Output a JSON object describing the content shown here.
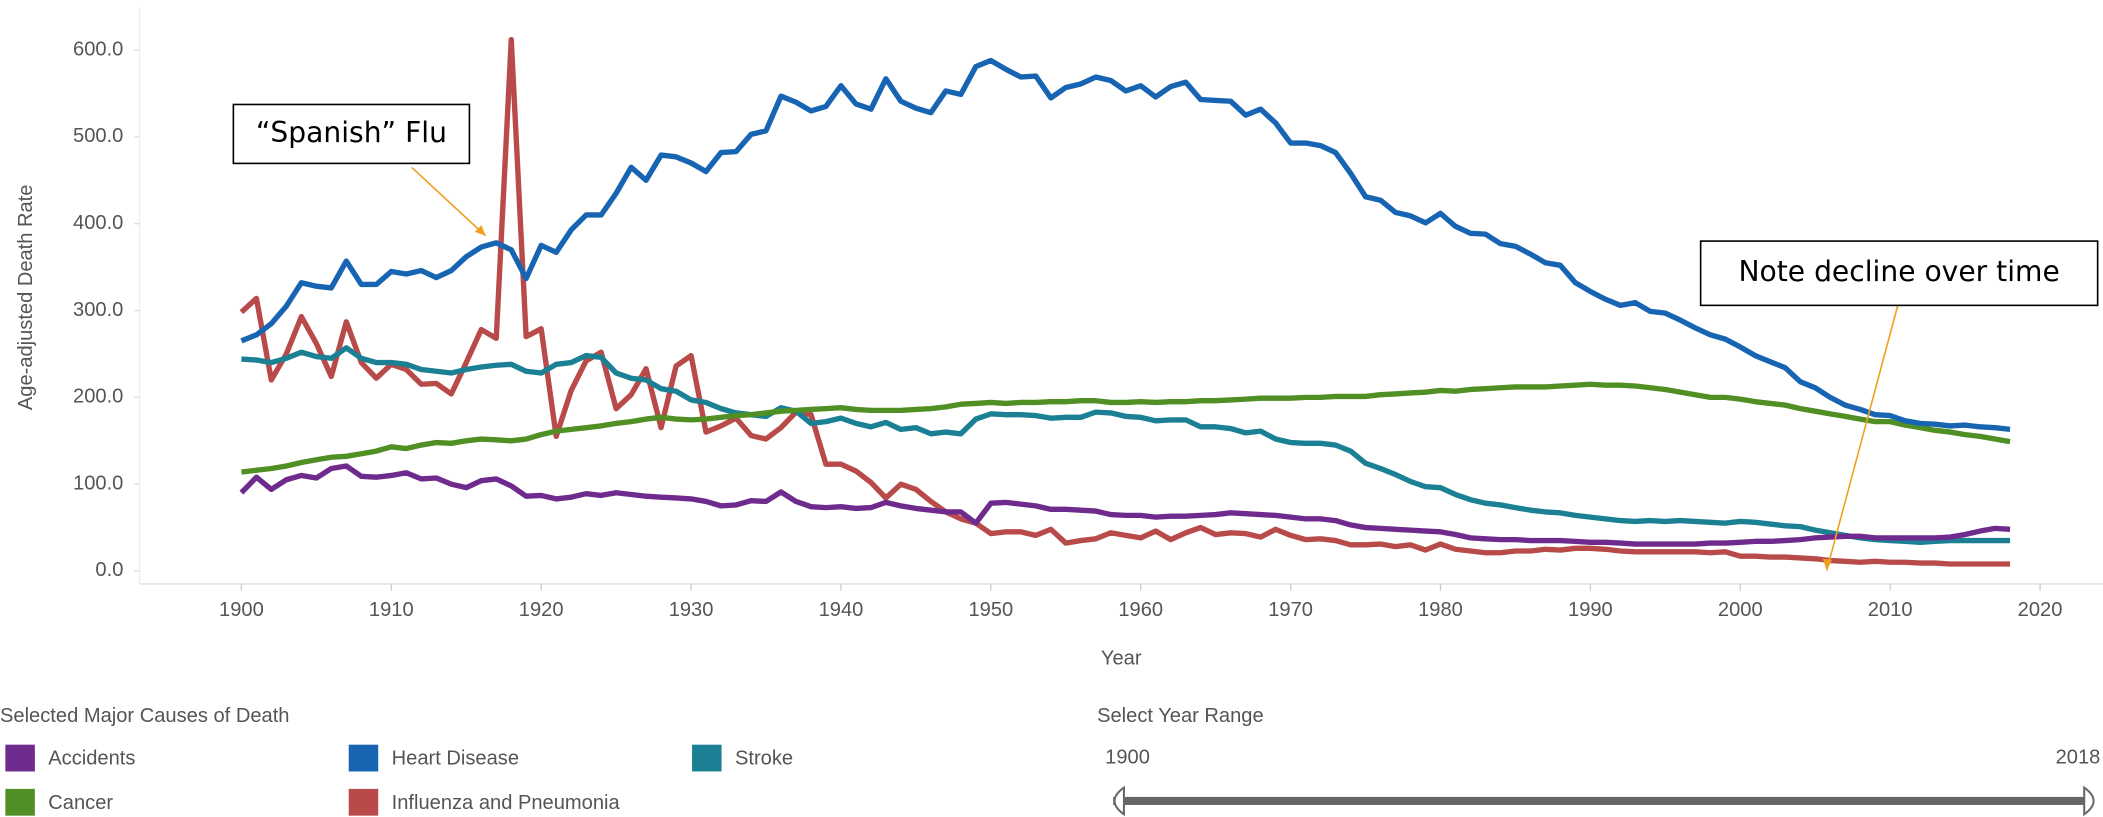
{
  "chart_data": {
    "type": "line",
    "x_label": "Year",
    "y_label": "Age-adjusted Death Rate",
    "xlim": [
      1893.2,
      2024.2
    ],
    "xticks": [
      1900,
      1910,
      1920,
      1930,
      1940,
      1950,
      1960,
      1970,
      1980,
      1990,
      2000,
      2010,
      2020
    ],
    "ylim": [
      -15,
      650
    ],
    "yticks": [
      {
        "value": 0,
        "label": "0.0"
      },
      {
        "value": 100,
        "label": "100.0"
      },
      {
        "value": 200,
        "label": "200.0"
      },
      {
        "value": 300,
        "label": "300.0"
      },
      {
        "value": 400,
        "label": "400.0"
      },
      {
        "value": 500,
        "label": "500.0"
      },
      {
        "value": 600,
        "label": "600.0"
      }
    ],
    "grid": false,
    "legend_title": "Selected Major Causes of Death",
    "x": [
      1900,
      1901,
      1902,
      1903,
      1904,
      1905,
      1906,
      1907,
      1908,
      1909,
      1910,
      1911,
      1912,
      1913,
      1914,
      1915,
      1916,
      1917,
      1918,
      1919,
      1920,
      1921,
      1922,
      1923,
      1924,
      1925,
      1926,
      1927,
      1928,
      1929,
      1930,
      1931,
      1932,
      1933,
      1934,
      1935,
      1936,
      1937,
      1938,
      1939,
      1940,
      1941,
      1942,
      1943,
      1944,
      1945,
      1946,
      1947,
      1948,
      1949,
      1950,
      1951,
      1952,
      1953,
      1954,
      1955,
      1956,
      1957,
      1958,
      1959,
      1960,
      1961,
      1962,
      1963,
      1964,
      1965,
      1966,
      1967,
      1968,
      1969,
      1970,
      1971,
      1972,
      1973,
      1974,
      1975,
      1976,
      1977,
      1978,
      1979,
      1980,
      1981,
      1982,
      1983,
      1984,
      1985,
      1986,
      1987,
      1988,
      1989,
      1990,
      1991,
      1992,
      1993,
      1994,
      1995,
      1996,
      1997,
      1998,
      1999,
      2000,
      2001,
      2002,
      2003,
      2004,
      2005,
      2006,
      2007,
      2008,
      2009,
      2010,
      2011,
      2012,
      2013,
      2014,
      2015,
      2016,
      2017,
      2018
    ],
    "series": [
      {
        "name": "Accidents",
        "color": "#6f2a8e",
        "values": [
          90,
          108,
          94,
          105,
          110,
          107,
          118,
          121,
          109,
          108,
          110,
          113,
          106,
          107,
          100,
          96,
          104,
          106,
          98,
          86,
          87,
          83,
          85,
          89,
          87,
          90,
          88,
          86,
          85,
          84,
          83,
          80,
          75,
          76,
          81,
          80,
          91,
          80,
          74,
          73,
          74,
          72,
          73,
          79,
          75,
          72,
          70,
          68,
          68,
          55,
          78,
          79,
          77,
          75,
          71,
          71,
          70,
          69,
          65,
          64,
          64,
          62,
          63,
          63,
          64,
          65,
          67,
          66,
          65,
          64,
          62,
          60,
          60,
          58,
          53,
          50,
          49,
          48,
          47,
          46,
          45,
          42,
          38,
          37,
          36,
          36,
          35,
          35,
          35,
          34,
          33,
          33,
          32,
          31,
          31,
          31,
          31,
          31,
          32,
          32,
          33,
          34,
          34,
          35,
          36,
          38,
          39,
          40,
          40,
          38,
          38,
          38,
          38,
          38,
          39,
          42,
          46,
          49,
          48
        ]
      },
      {
        "name": "Heart Disease",
        "color": "#1765b2",
        "values": [
          265,
          272,
          285,
          305,
          332,
          328,
          326,
          357,
          330,
          330,
          345,
          342,
          346,
          338,
          346,
          362,
          373,
          378,
          370,
          337,
          375,
          367,
          393,
          410,
          410,
          435,
          465,
          450,
          479,
          477,
          470,
          460,
          482,
          483,
          503,
          507,
          547,
          540,
          530,
          535,
          559,
          538,
          532,
          567,
          541,
          533,
          528,
          553,
          549,
          581,
          588,
          578,
          569,
          570,
          545,
          557,
          561,
          569,
          565,
          553,
          559,
          546,
          558,
          563,
          543,
          542,
          541,
          525,
          532,
          516,
          493,
          493,
          490,
          482,
          458,
          431,
          427,
          413,
          409,
          401,
          412,
          397,
          389,
          388,
          377,
          374,
          365,
          355,
          352,
          332,
          322,
          313,
          306,
          309,
          299,
          297,
          289,
          280,
          272,
          267,
          258,
          248,
          241,
          234,
          218,
          211,
          200,
          191,
          186,
          180,
          179,
          173,
          170,
          169,
          167,
          168,
          166,
          165,
          163
        ]
      },
      {
        "name": "Stroke",
        "color": "#1b8094",
        "values": [
          244,
          243,
          240,
          245,
          252,
          247,
          245,
          257,
          245,
          240,
          240,
          238,
          232,
          230,
          228,
          232,
          235,
          237,
          238,
          230,
          228,
          238,
          240,
          248,
          246,
          228,
          222,
          220,
          210,
          207,
          197,
          194,
          187,
          182,
          180,
          178,
          188,
          184,
          170,
          172,
          176,
          170,
          166,
          171,
          163,
          165,
          158,
          160,
          158,
          175,
          181,
          180,
          180,
          179,
          176,
          177,
          177,
          183,
          182,
          178,
          177,
          173,
          174,
          174,
          166,
          166,
          164,
          159,
          161,
          152,
          148,
          147,
          147,
          145,
          138,
          124,
          118,
          111,
          103,
          97,
          96,
          88,
          82,
          78,
          76,
          73,
          70,
          68,
          67,
          64,
          62,
          60,
          58,
          57,
          58,
          57,
          58,
          57,
          56,
          55,
          57,
          56,
          54,
          52,
          51,
          47,
          44,
          41,
          38,
          36,
          35,
          34,
          33,
          34,
          35,
          35,
          35,
          35,
          35
        ]
      },
      {
        "name": "Cancer",
        "color": "#4f8f24",
        "values": [
          114,
          116,
          118,
          121,
          125,
          128,
          131,
          132,
          135,
          138,
          143,
          141,
          145,
          148,
          147,
          150,
          152,
          151,
          150,
          152,
          157,
          161,
          163,
          165,
          167,
          170,
          172,
          175,
          177,
          175,
          174,
          175,
          177,
          179,
          180,
          182,
          184,
          185,
          186,
          187,
          188,
          186,
          185,
          185,
          185,
          186,
          187,
          189,
          192,
          193,
          194,
          193,
          194,
          194,
          195,
          195,
          196,
          196,
          194,
          194,
          195,
          194,
          195,
          195,
          196,
          196,
          197,
          198,
          199,
          199,
          199,
          200,
          200,
          201,
          201,
          201,
          203,
          204,
          205,
          206,
          208,
          207,
          209,
          210,
          211,
          212,
          212,
          212,
          213,
          214,
          215,
          214,
          214,
          213,
          211,
          209,
          206,
          203,
          200,
          200,
          198,
          195,
          193,
          191,
          187,
          184,
          181,
          178,
          175,
          172,
          172,
          168,
          165,
          162,
          160,
          157,
          155,
          152,
          149
        ]
      },
      {
        "name": "Influenza and Pneumonia",
        "color": "#b84a4a",
        "values": [
          298,
          314,
          220,
          250,
          293,
          262,
          224,
          287,
          240,
          222,
          238,
          232,
          215,
          216,
          204,
          240,
          278,
          268,
          612,
          270,
          279,
          155,
          208,
          242,
          252,
          187,
          203,
          233,
          165,
          236,
          248,
          160,
          167,
          176,
          156,
          152,
          165,
          183,
          180,
          123,
          123,
          115,
          102,
          84,
          100,
          94,
          80,
          68,
          60,
          55,
          43,
          45,
          45,
          41,
          48,
          32,
          35,
          37,
          44,
          41,
          38,
          46,
          36,
          44,
          50,
          42,
          44,
          43,
          39,
          48,
          41,
          36,
          37,
          35,
          30,
          30,
          31,
          28,
          30,
          24,
          31,
          25,
          23,
          21,
          21,
          23,
          23,
          25,
          24,
          26,
          26,
          25,
          23,
          22,
          22,
          22,
          22,
          22,
          21,
          22,
          17,
          17,
          16,
          16,
          15,
          14,
          12,
          11,
          10,
          11,
          10,
          10,
          9,
          9,
          8,
          8,
          8,
          8,
          8
        ]
      }
    ],
    "annotations": [
      "“Spanish” Flu",
      "Note decline over time"
    ]
  },
  "year_range": {
    "label": "Select Year Range",
    "start": 1900,
    "end": 2018
  }
}
